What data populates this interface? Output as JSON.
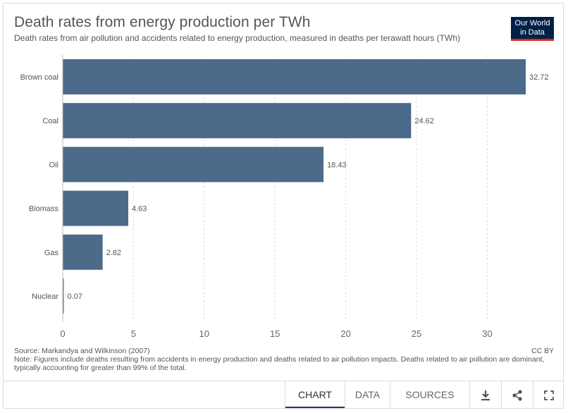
{
  "header": {
    "title": "Death rates from energy production per TWh",
    "subtitle": "Death rates from air pollution and accidents related to energy production, measured in deaths per terawatt hours (TWh)",
    "logo_line1": "Our World",
    "logo_line2": "in Data"
  },
  "footer": {
    "source": "Source: Markandya and Wilkinson (2007)",
    "license": "CC BY",
    "note": "Note: Figures include deaths resulting from accidents in energy production and deaths related to air pollution impacts. Deaths related to air pollution are dominant, typically accounting for greater than 99% of the total."
  },
  "controls": {
    "tabs": [
      "CHART",
      "DATA",
      "SOURCES"
    ],
    "active_tab": "CHART",
    "icons": [
      "download-icon",
      "share-icon",
      "fullscreen-icon"
    ]
  },
  "colors": {
    "bar": "#4c6a8a",
    "grid": "#dddddd",
    "logo_bg": "#002147",
    "logo_accent": "#d42b21"
  },
  "chart_data": {
    "type": "bar",
    "orientation": "horizontal",
    "categories": [
      "Brown coal",
      "Coal",
      "Oil",
      "Biomass",
      "Gas",
      "Nuclear"
    ],
    "values": [
      32.72,
      24.62,
      18.43,
      4.63,
      2.82,
      0.07
    ],
    "value_labels": [
      "32.72",
      "24.62",
      "18.43",
      "4.63",
      "2.82",
      "0.07"
    ],
    "xlim": [
      0,
      32.72
    ],
    "xticks": [
      0,
      5,
      10,
      15,
      20,
      25,
      30
    ],
    "grid": "vertical dashed"
  }
}
